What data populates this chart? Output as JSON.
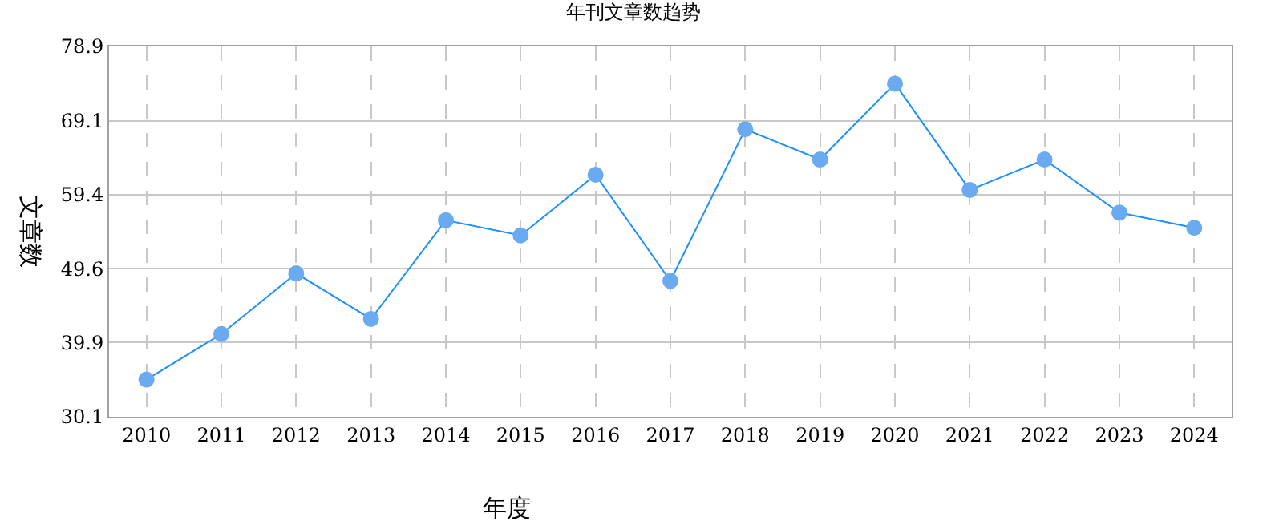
{
  "chart_data": {
    "type": "line",
    "title": "年刊文章数趋势",
    "xlabel": "年度",
    "ylabel": "文章数",
    "categories": [
      "2010",
      "2011",
      "2012",
      "2013",
      "2014",
      "2015",
      "2016",
      "2017",
      "2018",
      "2019",
      "2020",
      "2021",
      "2022",
      "2023",
      "2024"
    ],
    "series": [
      {
        "color": "#1e90ff",
        "colors": [
          "#6aaaf0",
          "#6aaaf0",
          "#6aaaf0",
          "#6aaaf0",
          "#6aaaf0",
          "#6aaaf0",
          "#6aaaf0",
          "#6aaaf0",
          "#6aaaf0",
          "#6aaaf0",
          "#6aaaf0",
          "#6aaaf0",
          "#6aaaf0",
          "#6aaaf0",
          "#6aaaf0"
        ],
        "values": [
          35,
          41,
          49,
          43,
          56,
          54,
          62,
          48,
          68,
          64,
          74,
          60,
          64,
          57,
          55
        ]
      }
    ],
    "ylim": [
      30.1,
      78.9
    ],
    "yticks": [
      30.1,
      39.9,
      49.6,
      59.4,
      69.1,
      78.9
    ],
    "grid": true,
    "marker": "circle",
    "line_style": "solid",
    "legend": false
  }
}
